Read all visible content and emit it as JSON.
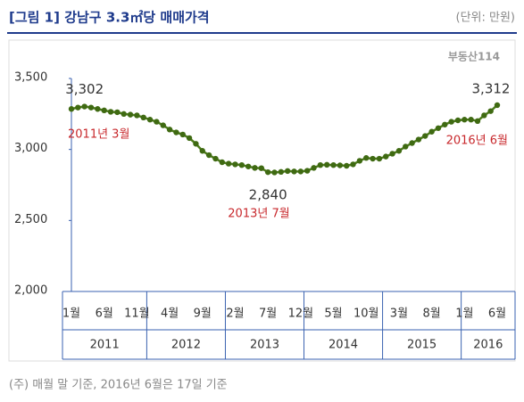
{
  "chart_data": {
    "type": "line",
    "title": "[그림 1] 강남구 3.3㎡당 매매가격",
    "unit": "(단위: 만원)",
    "logo": "부동산114",
    "footnote": "(주) 매월 말 기준, 2016년 6월은 17일 기준",
    "categories": [
      "1월",
      null,
      null,
      null,
      null,
      "6월",
      null,
      null,
      null,
      null,
      "11월",
      null,
      null,
      null,
      null,
      "4월",
      null,
      null,
      null,
      null,
      "9월",
      null,
      null,
      null,
      null,
      "2월",
      null,
      null,
      null,
      null,
      "7월",
      null,
      null,
      null,
      null,
      "12월",
      null,
      null,
      null,
      null,
      "5월",
      null,
      null,
      null,
      null,
      "10월",
      null,
      null,
      null,
      null,
      "3월",
      null,
      null,
      null,
      null,
      "8월",
      null,
      null,
      null,
      null,
      "1월",
      null,
      null,
      null,
      null,
      "6월"
    ],
    "years": [
      "2011",
      "2012",
      "2013",
      "2014",
      "2015",
      "2016"
    ],
    "values": [
      3285,
      3295,
      3302,
      3295,
      3285,
      3275,
      3265,
      3262,
      3250,
      3245,
      3240,
      3225,
      3210,
      3195,
      3170,
      3140,
      3120,
      3105,
      3080,
      3040,
      2990,
      2960,
      2935,
      2910,
      2900,
      2895,
      2890,
      2880,
      2870,
      2868,
      2840,
      2838,
      2842,
      2848,
      2845,
      2845,
      2850,
      2870,
      2890,
      2892,
      2890,
      2888,
      2885,
      2895,
      2920,
      2940,
      2935,
      2935,
      2950,
      2970,
      2990,
      3020,
      3045,
      3070,
      3095,
      3125,
      3150,
      3175,
      3195,
      3205,
      3210,
      3210,
      3200,
      3240,
      3270,
      3312
    ],
    "value_labels": [
      null,
      null,
      "3,302",
      null,
      null,
      null,
      null,
      null,
      null,
      null,
      null,
      null,
      null,
      null,
      null,
      null,
      null,
      null,
      null,
      null,
      null,
      null,
      null,
      null,
      null,
      null,
      null,
      null,
      null,
      null,
      "2,840",
      null,
      null,
      null,
      null,
      null,
      null,
      null,
      null,
      null,
      null,
      null,
      null,
      null,
      null,
      null,
      null,
      null,
      null,
      null,
      null,
      null,
      null,
      null,
      null,
      null,
      null,
      null,
      null,
      null,
      null,
      null,
      null,
      null,
      null,
      "3,312"
    ],
    "annotations": [
      "2011년 3월",
      "2013년 7월",
      "2016년 6월"
    ],
    "color": "#4e7d1c",
    "marker_color": "#3f6a12",
    "annotation_color": "#c8282c",
    "ylim": [
      2000,
      3500
    ],
    "yticks": [
      {
        "value": 2000,
        "label": "2,000"
      },
      {
        "value": 2500,
        "label": "2,500"
      },
      {
        "value": 3000,
        "label": "3,000"
      },
      {
        "value": 3500,
        "label": "3,500"
      }
    ],
    "grid": false
  }
}
